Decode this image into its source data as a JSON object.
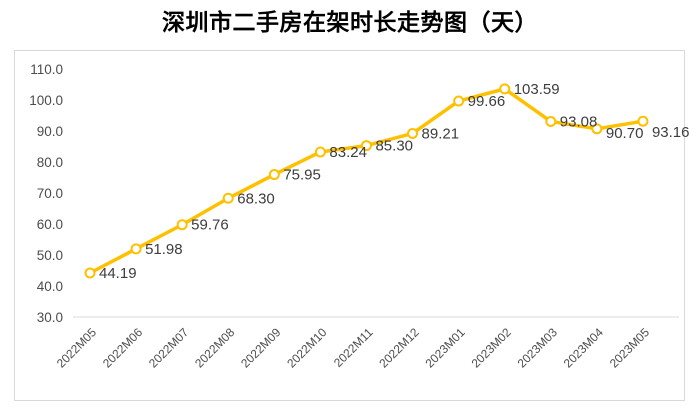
{
  "title": "深圳市二手房在架时长走势图（天）",
  "chart_style": {
    "line_color": "#FFC000",
    "marker_fill": "#ffffff",
    "data_label_color": "#3d3d3d",
    "tick_label_color": "#4d4d4d",
    "axis_line_color": "#d9d9d9",
    "card_border_color": "#d9d9d9",
    "background": "#ffffff"
  },
  "chart_data": {
    "type": "line",
    "title": "深圳市二手房在架时长走势图（天）",
    "xlabel": "",
    "ylabel": "",
    "legend": "none",
    "grid": false,
    "marker": "open-circle",
    "ylim": [
      30,
      110
    ],
    "y_tick_labels": [
      "110.0",
      "100.0",
      "90.0",
      "80.0",
      "70.0",
      "60.0",
      "50.0",
      "40.0",
      "30.0"
    ],
    "categories": [
      "2022M05",
      "2022M06",
      "2022M07",
      "2022M08",
      "2022M09",
      "2022M10",
      "2022M11",
      "2022M12",
      "2023M01",
      "2023M02",
      "2023M03",
      "2023M04",
      "2023M05"
    ],
    "series": [
      {
        "name": "在架时长",
        "values": [
          44.19,
          51.98,
          59.76,
          68.3,
          75.95,
          83.24,
          85.3,
          89.21,
          99.66,
          103.59,
          93.08,
          90.7,
          93.16
        ],
        "value_labels": [
          "44.19",
          "51.98",
          "59.76",
          "68.30",
          "75.95",
          "83.24",
          "85.30",
          "89.21",
          "99.66",
          "103.59",
          "93.08",
          "90.70",
          "93.16"
        ]
      }
    ]
  }
}
